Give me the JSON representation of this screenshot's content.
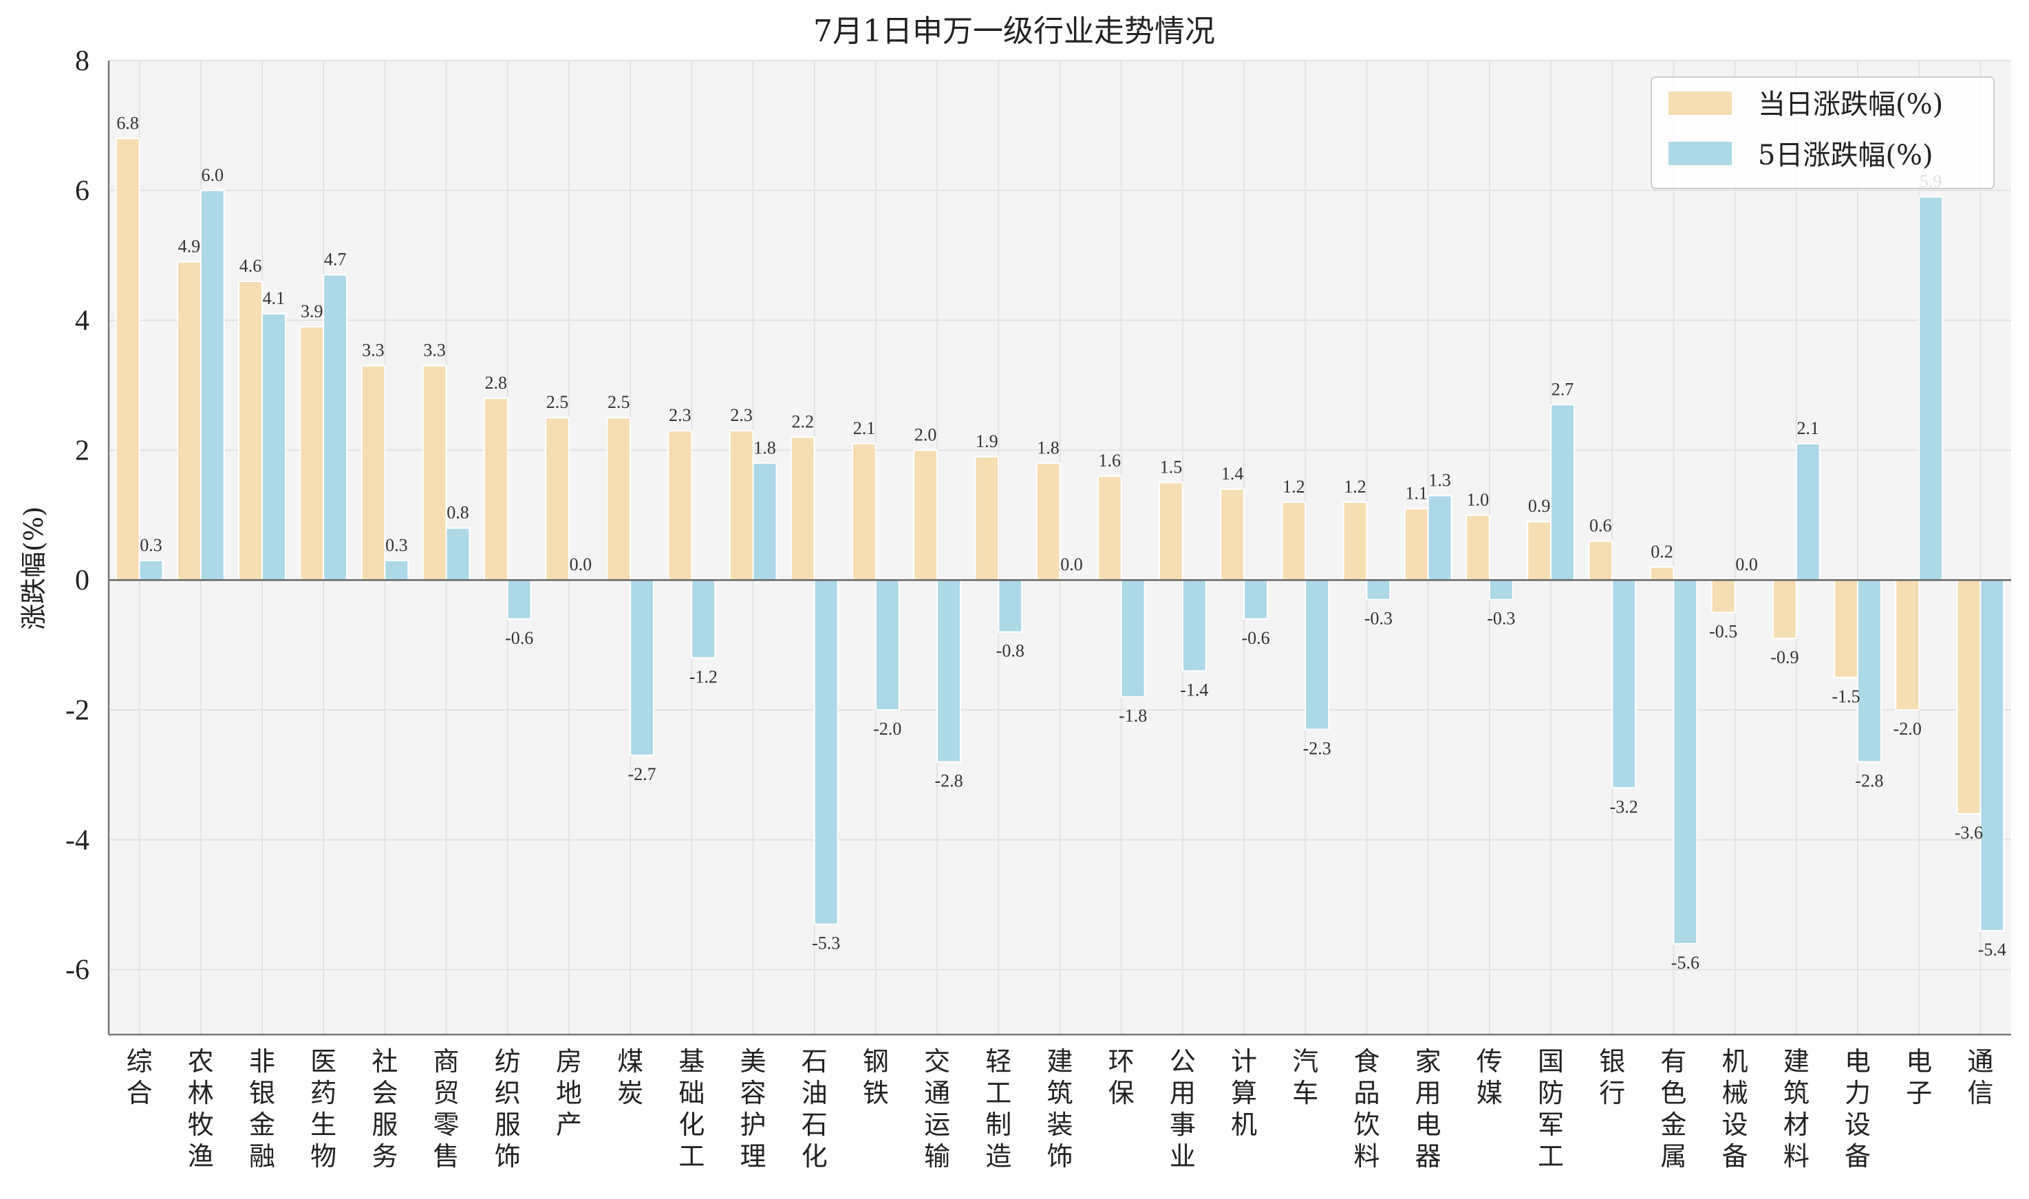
{
  "chart_data": {
    "type": "bar",
    "title": "7月1日申万一级行业走势情况",
    "xlabel": "",
    "ylabel": "涨跌幅(%)",
    "ylim": [
      -7,
      8
    ],
    "yticks": [
      "8",
      "6",
      "4",
      "2",
      "0",
      "-2",
      "-4",
      "-6"
    ],
    "grid": true,
    "legend_position": "top-right",
    "colors": {
      "daily": "#f5deb3",
      "five_day": "#add8e6",
      "plot_bg": "#f4f4f4"
    },
    "categories": [
      "综合",
      "农林牧渔",
      "非银金融",
      "医药生物",
      "社会服务",
      "商贸零售",
      "纺织服饰",
      "房地产",
      "煤炭",
      "基础化工",
      "美容护理",
      "石油石化",
      "钢铁",
      "交通运输",
      "轻工制造",
      "建筑装饰",
      "环保",
      "公用事业",
      "计算机",
      "汽车",
      "食品饮料",
      "家用电器",
      "传媒",
      "国防军工",
      "银行",
      "有色金属",
      "机械设备",
      "建筑材料",
      "电力设备",
      "电子",
      "通信"
    ],
    "series": [
      {
        "name": "当日涨跌幅(%)",
        "values": [
          6.8,
          4.9,
          4.6,
          3.9,
          3.3,
          3.3,
          2.8,
          2.5,
          2.5,
          2.3,
          2.3,
          2.2,
          2.1,
          2.0,
          1.9,
          1.8,
          1.6,
          1.5,
          1.4,
          1.2,
          1.2,
          1.1,
          1.0,
          0.9,
          0.6,
          0.2,
          -0.5,
          -0.9,
          -1.5,
          -2.0,
          -3.6
        ],
        "labels": [
          "6.8",
          "4.9",
          "4.6",
          "3.9",
          "3.3",
          "3.3",
          "2.8",
          "2.5",
          "2.5",
          "2.3",
          "2.3",
          "2.2",
          "2.1",
          "2.0",
          "1.9",
          "1.8",
          "1.6",
          "1.5",
          "1.4",
          "1.2",
          "1.2",
          "1.1",
          "1.0",
          "0.9",
          "0.6",
          "0.2",
          "-0.5",
          "-0.9",
          "-1.5",
          "-2.0",
          "-3.6"
        ]
      },
      {
        "name": "5日涨跌幅(%)",
        "values": [
          0.3,
          6.0,
          4.1,
          4.7,
          0.3,
          0.8,
          -0.6,
          0.0,
          -2.7,
          -1.2,
          1.8,
          -5.3,
          -2.0,
          -2.8,
          -0.8,
          0.0,
          -1.8,
          -1.4,
          -0.6,
          -2.3,
          -0.3,
          1.3,
          -0.3,
          2.7,
          -3.2,
          -5.6,
          0.0,
          2.1,
          -2.8,
          5.9,
          -5.4
        ],
        "labels": [
          "0.3",
          "6.0",
          "4.1",
          "4.7",
          "0.3",
          "0.8",
          "-0.6",
          "0.0",
          "-2.7",
          "-1.2",
          "1.8",
          "-5.3",
          "-2.0",
          "-2.8",
          "-0.8",
          "0.0",
          "-1.8",
          "-1.4",
          "-0.6",
          "-2.3",
          "-0.3",
          "1.3",
          "-0.3",
          "2.7",
          "-3.2",
          "-5.6",
          "0.0",
          "2.1",
          "-2.8",
          "5.9",
          "-5.4"
        ]
      }
    ]
  }
}
